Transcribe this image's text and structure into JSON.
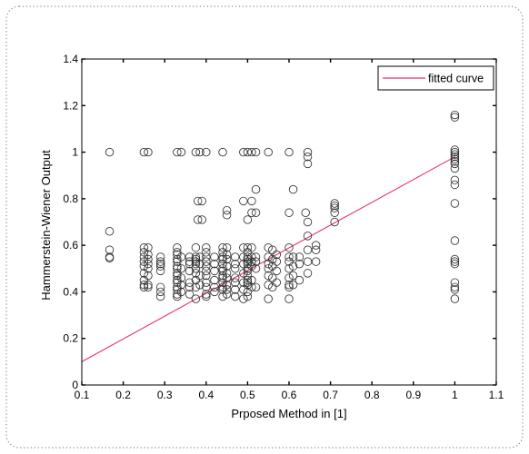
{
  "chart_data": {
    "type": "scatter",
    "xlabel": "Prposed Method in [1]",
    "ylabel": "Hammerstein-Wiener Output",
    "xlim": [
      0.1,
      1.1
    ],
    "ylim": [
      0,
      1.4
    ],
    "xticks": [
      "0.1",
      "0.2",
      "0.3",
      "0.4",
      "0.5",
      "0.6",
      "0.7",
      "0.8",
      "0.9",
      "1",
      "1.1"
    ],
    "yticks": [
      "0",
      "0.2",
      "0.4",
      "0.6",
      "0.8",
      "1",
      "1.2",
      "1.4"
    ],
    "grid": false,
    "legend_position": "top-right",
    "series": [
      {
        "type": "scatter",
        "marker": "circle-open",
        "color": "#333333",
        "points": [
          [
            0.167,
            1.0
          ],
          [
            0.167,
            0.66
          ],
          [
            0.167,
            0.58
          ],
          [
            0.167,
            0.55
          ],
          [
            0.167,
            0.545
          ],
          [
            0.25,
            1.0
          ],
          [
            0.26,
            1.0
          ],
          [
            0.25,
            0.59
          ],
          [
            0.25,
            0.57
          ],
          [
            0.25,
            0.55
          ],
          [
            0.25,
            0.53
          ],
          [
            0.25,
            0.51
          ],
          [
            0.25,
            0.48
          ],
          [
            0.25,
            0.45
          ],
          [
            0.25,
            0.43
          ],
          [
            0.25,
            0.42
          ],
          [
            0.26,
            0.59
          ],
          [
            0.26,
            0.56
          ],
          [
            0.26,
            0.54
          ],
          [
            0.26,
            0.52
          ],
          [
            0.26,
            0.5
          ],
          [
            0.26,
            0.47
          ],
          [
            0.26,
            0.43
          ],
          [
            0.26,
            0.42
          ],
          [
            0.29,
            0.55
          ],
          [
            0.29,
            0.53
          ],
          [
            0.29,
            0.52
          ],
          [
            0.29,
            0.51
          ],
          [
            0.29,
            0.49
          ],
          [
            0.29,
            0.42
          ],
          [
            0.29,
            0.4
          ],
          [
            0.29,
            0.38
          ],
          [
            0.33,
            1.0
          ],
          [
            0.34,
            1.0
          ],
          [
            0.33,
            0.59
          ],
          [
            0.33,
            0.57
          ],
          [
            0.33,
            0.56
          ],
          [
            0.33,
            0.54
          ],
          [
            0.33,
            0.53
          ],
          [
            0.33,
            0.51
          ],
          [
            0.33,
            0.5
          ],
          [
            0.33,
            0.48
          ],
          [
            0.33,
            0.47
          ],
          [
            0.33,
            0.45
          ],
          [
            0.33,
            0.44
          ],
          [
            0.33,
            0.42
          ],
          [
            0.33,
            0.41
          ],
          [
            0.33,
            0.39
          ],
          [
            0.33,
            0.38
          ],
          [
            0.34,
            0.55
          ],
          [
            0.34,
            0.5
          ],
          [
            0.34,
            0.46
          ],
          [
            0.34,
            0.43
          ],
          [
            0.34,
            0.4
          ],
          [
            0.36,
            0.55
          ],
          [
            0.36,
            0.53
          ],
          [
            0.36,
            0.52
          ],
          [
            0.36,
            0.49
          ],
          [
            0.36,
            0.44
          ],
          [
            0.36,
            0.42
          ],
          [
            0.36,
            0.39
          ],
          [
            0.375,
            1.0
          ],
          [
            0.385,
            1.0
          ],
          [
            0.4,
            1.0
          ],
          [
            0.38,
            0.79
          ],
          [
            0.39,
            0.79
          ],
          [
            0.38,
            0.71
          ],
          [
            0.39,
            0.71
          ],
          [
            0.375,
            0.59
          ],
          [
            0.375,
            0.55
          ],
          [
            0.375,
            0.54
          ],
          [
            0.375,
            0.53
          ],
          [
            0.375,
            0.52
          ],
          [
            0.375,
            0.5
          ],
          [
            0.375,
            0.48
          ],
          [
            0.375,
            0.45
          ],
          [
            0.375,
            0.42
          ],
          [
            0.375,
            0.37
          ],
          [
            0.385,
            0.55
          ],
          [
            0.385,
            0.52
          ],
          [
            0.385,
            0.47
          ],
          [
            0.385,
            0.43
          ],
          [
            0.4,
            0.59
          ],
          [
            0.4,
            0.57
          ],
          [
            0.4,
            0.55
          ],
          [
            0.4,
            0.53
          ],
          [
            0.4,
            0.51
          ],
          [
            0.4,
            0.49
          ],
          [
            0.4,
            0.47
          ],
          [
            0.4,
            0.44
          ],
          [
            0.4,
            0.42
          ],
          [
            0.4,
            0.39
          ],
          [
            0.4,
            0.38
          ],
          [
            0.42,
            0.55
          ],
          [
            0.42,
            0.52
          ],
          [
            0.42,
            0.49
          ],
          [
            0.42,
            0.45
          ],
          [
            0.42,
            0.42
          ],
          [
            0.42,
            0.4
          ],
          [
            0.44,
            1.0
          ],
          [
            0.45,
            0.75
          ],
          [
            0.45,
            0.73
          ],
          [
            0.44,
            0.59
          ],
          [
            0.44,
            0.57
          ],
          [
            0.44,
            0.55
          ],
          [
            0.44,
            0.54
          ],
          [
            0.44,
            0.52
          ],
          [
            0.44,
            0.5
          ],
          [
            0.44,
            0.49
          ],
          [
            0.44,
            0.47
          ],
          [
            0.44,
            0.46
          ],
          [
            0.44,
            0.44
          ],
          [
            0.44,
            0.42
          ],
          [
            0.44,
            0.41
          ],
          [
            0.44,
            0.38
          ],
          [
            0.45,
            0.59
          ],
          [
            0.45,
            0.56
          ],
          [
            0.45,
            0.54
          ],
          [
            0.45,
            0.51
          ],
          [
            0.45,
            0.48
          ],
          [
            0.45,
            0.46
          ],
          [
            0.45,
            0.43
          ],
          [
            0.45,
            0.41
          ],
          [
            0.45,
            0.39
          ],
          [
            0.47,
            0.55
          ],
          [
            0.47,
            0.52
          ],
          [
            0.47,
            0.5
          ],
          [
            0.47,
            0.46
          ],
          [
            0.47,
            0.44
          ],
          [
            0.47,
            0.41
          ],
          [
            0.47,
            0.38
          ],
          [
            0.49,
            1.0
          ],
          [
            0.5,
            1.0
          ],
          [
            0.51,
            1.0
          ],
          [
            0.52,
            1.0
          ],
          [
            0.49,
            0.79
          ],
          [
            0.51,
            0.79
          ],
          [
            0.51,
            0.74
          ],
          [
            0.52,
            0.84
          ],
          [
            0.52,
            0.74
          ],
          [
            0.5,
            0.71
          ],
          [
            0.49,
            0.59
          ],
          [
            0.49,
            0.55
          ],
          [
            0.49,
            0.52
          ],
          [
            0.49,
            0.48
          ],
          [
            0.49,
            0.44
          ],
          [
            0.49,
            0.41
          ],
          [
            0.49,
            0.37
          ],
          [
            0.5,
            0.59
          ],
          [
            0.5,
            0.57
          ],
          [
            0.5,
            0.55
          ],
          [
            0.5,
            0.54
          ],
          [
            0.5,
            0.53
          ],
          [
            0.5,
            0.52
          ],
          [
            0.5,
            0.5
          ],
          [
            0.5,
            0.49
          ],
          [
            0.5,
            0.47
          ],
          [
            0.5,
            0.45
          ],
          [
            0.5,
            0.44
          ],
          [
            0.5,
            0.43
          ],
          [
            0.5,
            0.4
          ],
          [
            0.5,
            0.38
          ],
          [
            0.51,
            0.59
          ],
          [
            0.51,
            0.55
          ],
          [
            0.51,
            0.53
          ],
          [
            0.51,
            0.51
          ],
          [
            0.51,
            0.45
          ],
          [
            0.51,
            0.42
          ],
          [
            0.52,
            0.55
          ],
          [
            0.52,
            0.53
          ],
          [
            0.52,
            0.5
          ],
          [
            0.52,
            0.42
          ],
          [
            0.55,
            1.0
          ],
          [
            0.55,
            0.59
          ],
          [
            0.55,
            0.55
          ],
          [
            0.55,
            0.52
          ],
          [
            0.55,
            0.5
          ],
          [
            0.55,
            0.47
          ],
          [
            0.55,
            0.43
          ],
          [
            0.55,
            0.37
          ],
          [
            0.56,
            0.58
          ],
          [
            0.56,
            0.54
          ],
          [
            0.56,
            0.51
          ],
          [
            0.56,
            0.46
          ],
          [
            0.56,
            0.42
          ],
          [
            0.57,
            0.56
          ],
          [
            0.57,
            0.53
          ],
          [
            0.57,
            0.49
          ],
          [
            0.57,
            0.44
          ],
          [
            0.6,
            1.0
          ],
          [
            0.61,
            0.84
          ],
          [
            0.6,
            0.74
          ],
          [
            0.6,
            0.59
          ],
          [
            0.6,
            0.55
          ],
          [
            0.6,
            0.53
          ],
          [
            0.6,
            0.5
          ],
          [
            0.6,
            0.46
          ],
          [
            0.6,
            0.43
          ],
          [
            0.6,
            0.42
          ],
          [
            0.6,
            0.37
          ],
          [
            0.61,
            0.55
          ],
          [
            0.61,
            0.51
          ],
          [
            0.61,
            0.47
          ],
          [
            0.61,
            0.43
          ],
          [
            0.625,
            0.55
          ],
          [
            0.625,
            0.52
          ],
          [
            0.625,
            0.45
          ],
          [
            0.645,
            1.0
          ],
          [
            0.645,
            0.98
          ],
          [
            0.645,
            0.95
          ],
          [
            0.64,
            0.74
          ],
          [
            0.645,
            0.7
          ],
          [
            0.645,
            0.64
          ],
          [
            0.645,
            0.58
          ],
          [
            0.645,
            0.53
          ],
          [
            0.645,
            0.48
          ],
          [
            0.665,
            0.6
          ],
          [
            0.665,
            0.58
          ],
          [
            0.665,
            0.53
          ],
          [
            0.71,
            0.78
          ],
          [
            0.71,
            0.77
          ],
          [
            0.71,
            0.76
          ],
          [
            0.71,
            0.74
          ],
          [
            0.71,
            0.7
          ],
          [
            1.0,
            1.16
          ],
          [
            1.0,
            1.15
          ],
          [
            1.0,
            1.01
          ],
          [
            1.0,
            1.0
          ],
          [
            1.0,
            0.99
          ],
          [
            1.0,
            0.98
          ],
          [
            1.0,
            0.97
          ],
          [
            1.0,
            0.96
          ],
          [
            1.0,
            0.95
          ],
          [
            1.0,
            0.93
          ],
          [
            1.0,
            0.88
          ],
          [
            1.0,
            0.86
          ],
          [
            1.0,
            0.78
          ],
          [
            1.0,
            0.62
          ],
          [
            1.0,
            0.54
          ],
          [
            1.0,
            0.53
          ],
          [
            1.0,
            0.52
          ],
          [
            1.0,
            0.44
          ],
          [
            1.0,
            0.42
          ],
          [
            1.0,
            0.41
          ],
          [
            1.0,
            0.37
          ]
        ]
      },
      {
        "type": "line",
        "name": "fitted curve",
        "color": "#e8306a",
        "x": [
          0.1,
          1.0
        ],
        "y": [
          0.1,
          0.98
        ]
      }
    ]
  }
}
